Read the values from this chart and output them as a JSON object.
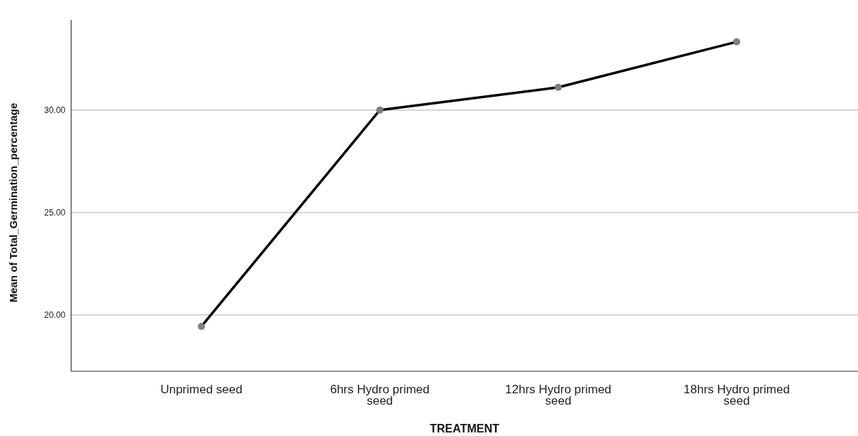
{
  "chart_data": {
    "type": "line",
    "xlabel": "TREATMENT",
    "ylabel": "Mean of Total_Germination_percentage",
    "categories": [
      "Unprimed seed",
      "6hrs Hydro primed seed",
      "12hrs Hydro primed seed",
      "18hrs Hydro primed seed"
    ],
    "series": [
      {
        "color": "#000000",
        "values": [
          19.44,
          30.0,
          31.11,
          33.33
        ]
      }
    ],
    "ylim": [
      17.25,
      34.4
    ],
    "yticks": [
      {
        "value": 20,
        "label": "20.00"
      },
      {
        "value": 25,
        "label": "25.00"
      },
      {
        "value": 30,
        "label": "30.00"
      }
    ],
    "grid": "y",
    "marker": "circle",
    "line_style": "solid"
  }
}
